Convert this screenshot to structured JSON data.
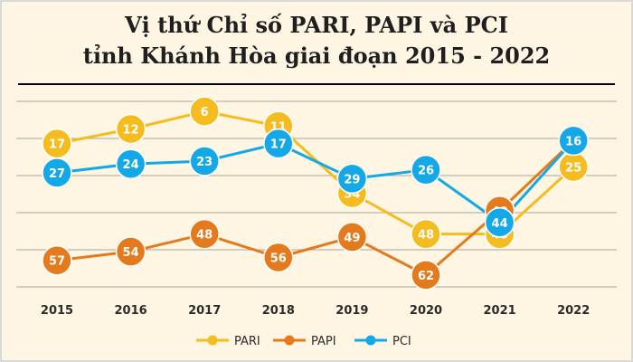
{
  "chart_data": {
    "type": "line",
    "title_line1": "Vị thứ Chỉ số PARI, PAPI và PCI",
    "title_line2": "tỉnh Khánh Hòa giai đoạn 2015 - 2022",
    "x": [
      "2015",
      "2016",
      "2017",
      "2018",
      "2019",
      "2020",
      "2021",
      "2022"
    ],
    "y_inverted": true,
    "ylim": [
      67,
      1
    ],
    "grid": true,
    "legend_position": "bottom",
    "series": [
      {
        "name": "PARI",
        "color": "#F5BC1F",
        "values": [
          17,
          12,
          6,
          11,
          34,
          48,
          48,
          25
        ]
      },
      {
        "name": "PAPI",
        "color": "#E47A1B",
        "values": [
          57,
          54,
          48,
          56,
          49,
          62,
          40,
          16
        ]
      },
      {
        "name": "PCI",
        "color": "#14A9E6",
        "values": [
          27,
          24,
          23,
          17,
          29,
          26,
          44,
          16
        ]
      }
    ]
  },
  "colors": {
    "background": "#FEF5E2",
    "frame": "#D9D9D9",
    "title": "#1F1F1F",
    "grid": "#8C8C8C",
    "axis_text": "#2B2B2B",
    "label_text": "#FFFFFF"
  }
}
